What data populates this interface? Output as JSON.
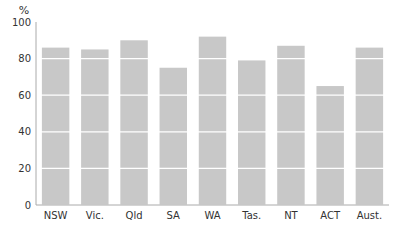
{
  "chart_data": {
    "type": "bar",
    "categories": [
      "NSW",
      "Vic.",
      "Qld",
      "SA",
      "WA",
      "Tas.",
      "NT",
      "ACT",
      "Aust."
    ],
    "values": [
      86,
      85,
      90,
      75,
      92,
      79,
      87,
      65,
      86
    ],
    "color": "#c8c8c8",
    "ylabel": "%",
    "ylim": [
      0,
      100
    ],
    "yticks": [
      0,
      20,
      40,
      60,
      80,
      100
    ],
    "grid": true
  }
}
